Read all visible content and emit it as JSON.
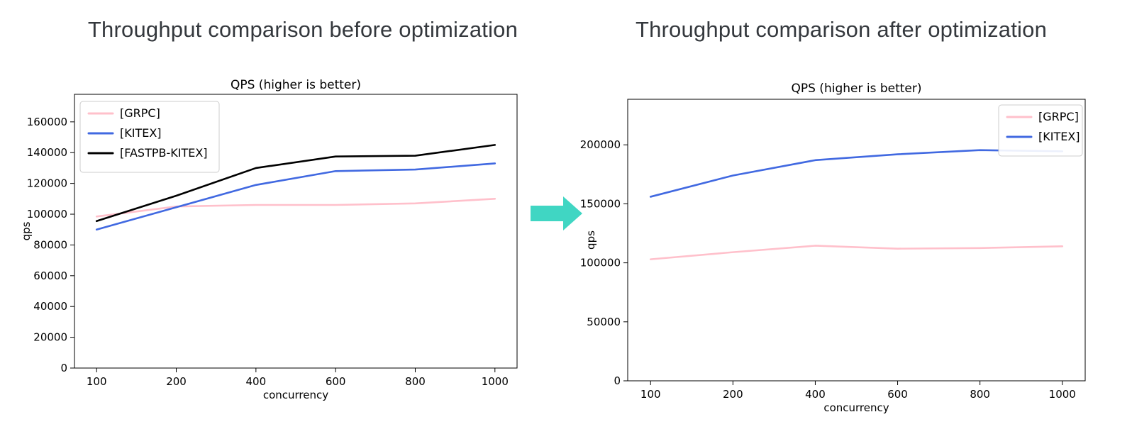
{
  "page": {
    "background_color": "#ffffff"
  },
  "arrow_icon": {
    "direction": "right",
    "color": "#40d6c3"
  },
  "chart_data": [
    {
      "type": "line",
      "heading": "Throughput comparison before optimization",
      "title": "QPS (higher is better)",
      "xlabel": "concurrency",
      "ylabel": "qps",
      "categories": [
        "100",
        "200",
        "400",
        "600",
        "800",
        "1000"
      ],
      "yticks": [
        0,
        20000,
        40000,
        60000,
        80000,
        100000,
        120000,
        140000,
        160000
      ],
      "ylim": [
        0,
        177900
      ],
      "grid": false,
      "legend_position": "upper-left",
      "series": [
        {
          "name": "[GRPC]",
          "color": "#ffc0cb",
          "values": [
            98500,
            105000,
            106000,
            106000,
            107000,
            110000
          ]
        },
        {
          "name": "[KITEX]",
          "color": "#4169e1",
          "values": [
            90000,
            104500,
            119000,
            128000,
            129000,
            133000
          ]
        },
        {
          "name": "[FASTPB-KITEX]",
          "color": "#000000",
          "values": [
            95500,
            112000,
            130000,
            137500,
            138000,
            145000
          ]
        }
      ]
    },
    {
      "type": "line",
      "heading": "Throughput comparison after optimization",
      "title": "QPS (higher is better)",
      "xlabel": "concurrency",
      "ylabel": "qps",
      "categories": [
        "100",
        "200",
        "400",
        "600",
        "800",
        "1000"
      ],
      "yticks": [
        0,
        50000,
        100000,
        150000,
        200000
      ],
      "ylim": [
        0,
        238600
      ],
      "grid": false,
      "legend_position": "upper-right",
      "series": [
        {
          "name": "[GRPC]",
          "color": "#ffc0cb",
          "values": [
            103000,
            109000,
            114500,
            112000,
            112500,
            114000
          ]
        },
        {
          "name": "[KITEX]",
          "color": "#4169e1",
          "values": [
            156000,
            174000,
            187000,
            192000,
            195500,
            194500
          ]
        }
      ]
    }
  ]
}
